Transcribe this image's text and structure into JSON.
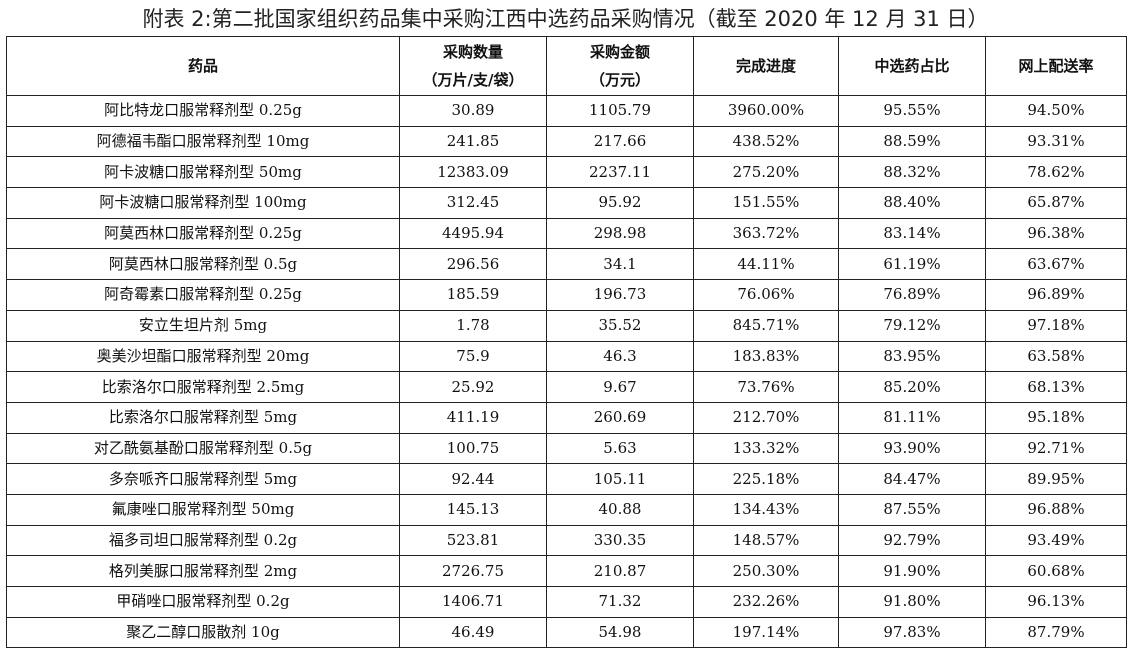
{
  "title": "附表 2:第二批国家组织药品集中采购江西中选药品采购情况（截至 2020 年 12 月 31 日）",
  "columns": [
    {
      "line1": "药品",
      "line2": ""
    },
    {
      "line1": "采购数量",
      "line2": "（万片/支/袋）"
    },
    {
      "line1": "采购金额",
      "line2": "（万元）"
    },
    {
      "line1": "完成进度",
      "line2": ""
    },
    {
      "line1": "中选药占比",
      "line2": ""
    },
    {
      "line1": "网上配送率",
      "line2": ""
    }
  ],
  "rows": [
    [
      "阿比特龙口服常释剂型 0.25g",
      "30.89",
      "1105.79",
      "3960.00%",
      "95.55%",
      "94.50%"
    ],
    [
      "阿德福韦酯口服常释剂型 10mg",
      "241.85",
      "217.66",
      "438.52%",
      "88.59%",
      "93.31%"
    ],
    [
      "阿卡波糖口服常释剂型 50mg",
      "12383.09",
      "2237.11",
      "275.20%",
      "88.32%",
      "78.62%"
    ],
    [
      "阿卡波糖口服常释剂型 100mg",
      "312.45",
      "95.92",
      "151.55%",
      "88.40%",
      "65.87%"
    ],
    [
      "阿莫西林口服常释剂型 0.25g",
      "4495.94",
      "298.98",
      "363.72%",
      "83.14%",
      "96.38%"
    ],
    [
      "阿莫西林口服常释剂型 0.5g",
      "296.56",
      "34.1",
      "44.11%",
      "61.19%",
      "63.67%"
    ],
    [
      "阿奇霉素口服常释剂型 0.25g",
      "185.59",
      "196.73",
      "76.06%",
      "76.89%",
      "96.89%"
    ],
    [
      "安立生坦片剂 5mg",
      "1.78",
      "35.52",
      "845.71%",
      "79.12%",
      "97.18%"
    ],
    [
      "奥美沙坦酯口服常释剂型 20mg",
      "75.9",
      "46.3",
      "183.83%",
      "83.95%",
      "63.58%"
    ],
    [
      "比索洛尔口服常释剂型 2.5mg",
      "25.92",
      "9.67",
      "73.76%",
      "85.20%",
      "68.13%"
    ],
    [
      "比索洛尔口服常释剂型 5mg",
      "411.19",
      "260.69",
      "212.70%",
      "81.11%",
      "95.18%"
    ],
    [
      "对乙酰氨基酚口服常释剂型 0.5g",
      "100.75",
      "5.63",
      "133.32%",
      "93.90%",
      "92.71%"
    ],
    [
      "多奈哌齐口服常释剂型 5mg",
      "92.44",
      "105.11",
      "225.18%",
      "84.47%",
      "89.95%"
    ],
    [
      "氟康唑口服常释剂型 50mg",
      "145.13",
      "40.88",
      "134.43%",
      "87.55%",
      "96.88%"
    ],
    [
      "福多司坦口服常释剂型 0.2g",
      "523.81",
      "330.35",
      "148.57%",
      "92.79%",
      "93.49%"
    ],
    [
      "格列美脲口服常释剂型 2mg",
      "2726.75",
      "210.87",
      "250.30%",
      "91.90%",
      "60.68%"
    ],
    [
      "甲硝唑口服常释剂型 0.2g",
      "1406.71",
      "71.32",
      "232.26%",
      "91.80%",
      "96.13%"
    ],
    [
      "聚乙二醇口服散剂 10g",
      "46.49",
      "54.98",
      "197.14%",
      "97.83%",
      "87.79%"
    ]
  ]
}
